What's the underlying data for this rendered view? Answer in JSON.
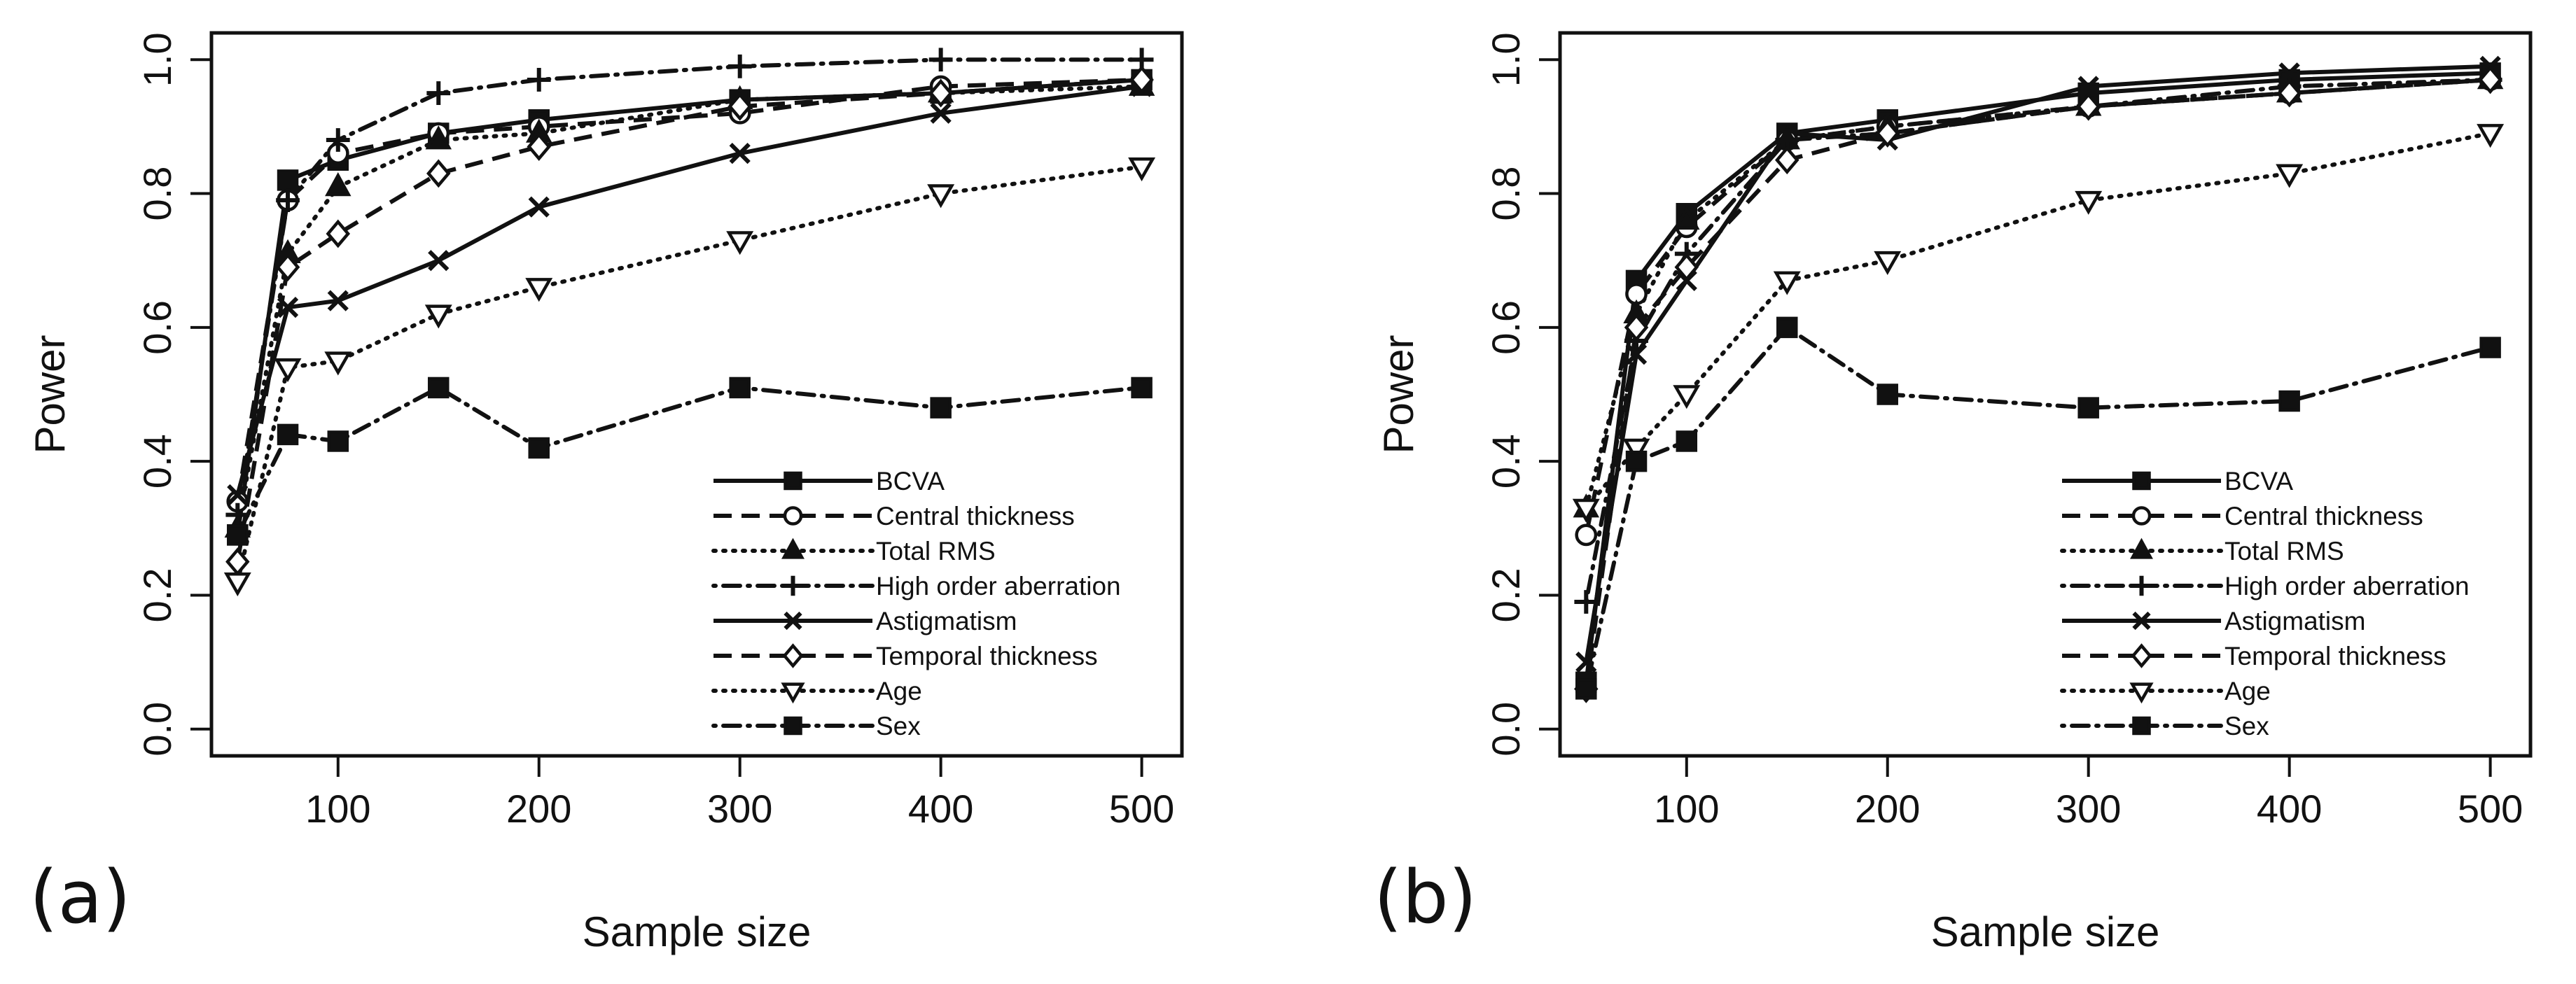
{
  "chart_data": [
    {
      "type": "line",
      "panel_label": "(a)",
      "xlabel": "Sample size",
      "ylabel": "Power",
      "xlim": [
        37,
        520
      ],
      "ylim": [
        -0.04,
        1.04
      ],
      "xticks": [
        "100",
        "200",
        "300",
        "400",
        "500"
      ],
      "yticks": [
        "0.0",
        "0.2",
        "0.4",
        "0.6",
        "0.8",
        "1.0"
      ],
      "grid": false,
      "legend_position": "bottom-right",
      "x": [
        50,
        75,
        100,
        150,
        200,
        300,
        400,
        500
      ],
      "series": [
        {
          "name": "BCVA",
          "line": "solid",
          "marker": "filled-square",
          "values": [
            0.29,
            0.82,
            0.85,
            0.89,
            0.91,
            0.94,
            0.95,
            0.97
          ]
        },
        {
          "name": "Central thickness",
          "line": "dashed",
          "marker": "open-circle",
          "values": [
            0.34,
            0.79,
            0.86,
            0.89,
            0.9,
            0.92,
            0.96,
            0.97
          ]
        },
        {
          "name": "Total RMS",
          "line": "dotted",
          "marker": "filled-triangle",
          "values": [
            0.3,
            0.71,
            0.81,
            0.88,
            0.89,
            0.94,
            0.95,
            0.96
          ]
        },
        {
          "name": "High order aberration",
          "line": "dot-dash",
          "marker": "plus",
          "values": [
            0.32,
            0.79,
            0.88,
            0.95,
            0.97,
            0.99,
            1.0,
            1.0
          ]
        },
        {
          "name": "Astigmatism",
          "line": "solid",
          "marker": "x",
          "values": [
            0.35,
            0.63,
            0.64,
            0.7,
            0.78,
            0.86,
            0.92,
            0.96
          ]
        },
        {
          "name": "Temporal thickness",
          "line": "dashed",
          "marker": "open-diamond",
          "values": [
            0.25,
            0.69,
            0.74,
            0.83,
            0.87,
            0.93,
            0.95,
            0.97
          ]
        },
        {
          "name": "Age",
          "line": "dotted",
          "marker": "open-triangle-down",
          "values": [
            0.22,
            0.54,
            0.55,
            0.62,
            0.66,
            0.73,
            0.8,
            0.84
          ]
        },
        {
          "name": "Sex",
          "line": "dot-dash",
          "marker": "filled-square",
          "values": [
            0.29,
            0.44,
            0.43,
            0.51,
            0.42,
            0.51,
            0.48,
            0.51
          ]
        }
      ]
    },
    {
      "type": "line",
      "panel_label": "(b)",
      "xlabel": "Sample size",
      "ylabel": "Power",
      "xlim": [
        37,
        520
      ],
      "ylim": [
        -0.04,
        1.04
      ],
      "xticks": [
        "100",
        "200",
        "300",
        "400",
        "500"
      ],
      "yticks": [
        "0.0",
        "0.2",
        "0.4",
        "0.6",
        "0.8",
        "1.0"
      ],
      "grid": false,
      "legend_position": "bottom-right",
      "x": [
        50,
        75,
        100,
        150,
        200,
        300,
        400,
        500
      ],
      "series": [
        {
          "name": "BCVA",
          "line": "solid",
          "marker": "filled-square",
          "values": [
            0.07,
            0.67,
            0.77,
            0.89,
            0.91,
            0.95,
            0.97,
            0.98
          ]
        },
        {
          "name": "Central thickness",
          "line": "dashed",
          "marker": "open-circle",
          "values": [
            0.29,
            0.65,
            0.75,
            0.88,
            0.9,
            0.93,
            0.95,
            0.97
          ]
        },
        {
          "name": "Total RMS",
          "line": "dotted",
          "marker": "filled-triangle",
          "values": [
            0.33,
            0.62,
            0.76,
            0.88,
            0.9,
            0.93,
            0.95,
            0.97
          ]
        },
        {
          "name": "High order aberration",
          "line": "dot-dash",
          "marker": "plus",
          "values": [
            0.19,
            0.58,
            0.71,
            0.88,
            0.89,
            0.93,
            0.96,
            0.97
          ]
        },
        {
          "name": "Astigmatism",
          "line": "solid",
          "marker": "x",
          "values": [
            0.1,
            0.56,
            0.67,
            0.89,
            0.88,
            0.96,
            0.98,
            0.99
          ]
        },
        {
          "name": "Temporal thickness",
          "line": "dashed",
          "marker": "open-diamond",
          "values": [
            0.06,
            0.6,
            0.69,
            0.85,
            0.89,
            0.93,
            0.95,
            0.97
          ]
        },
        {
          "name": "Age",
          "line": "dotted",
          "marker": "open-triangle-down",
          "values": [
            0.33,
            0.42,
            0.5,
            0.67,
            0.7,
            0.79,
            0.83,
            0.89
          ]
        },
        {
          "name": "Sex",
          "line": "dot-dash",
          "marker": "filled-square",
          "values": [
            0.06,
            0.4,
            0.43,
            0.6,
            0.5,
            0.48,
            0.49,
            0.57
          ]
        }
      ]
    }
  ]
}
